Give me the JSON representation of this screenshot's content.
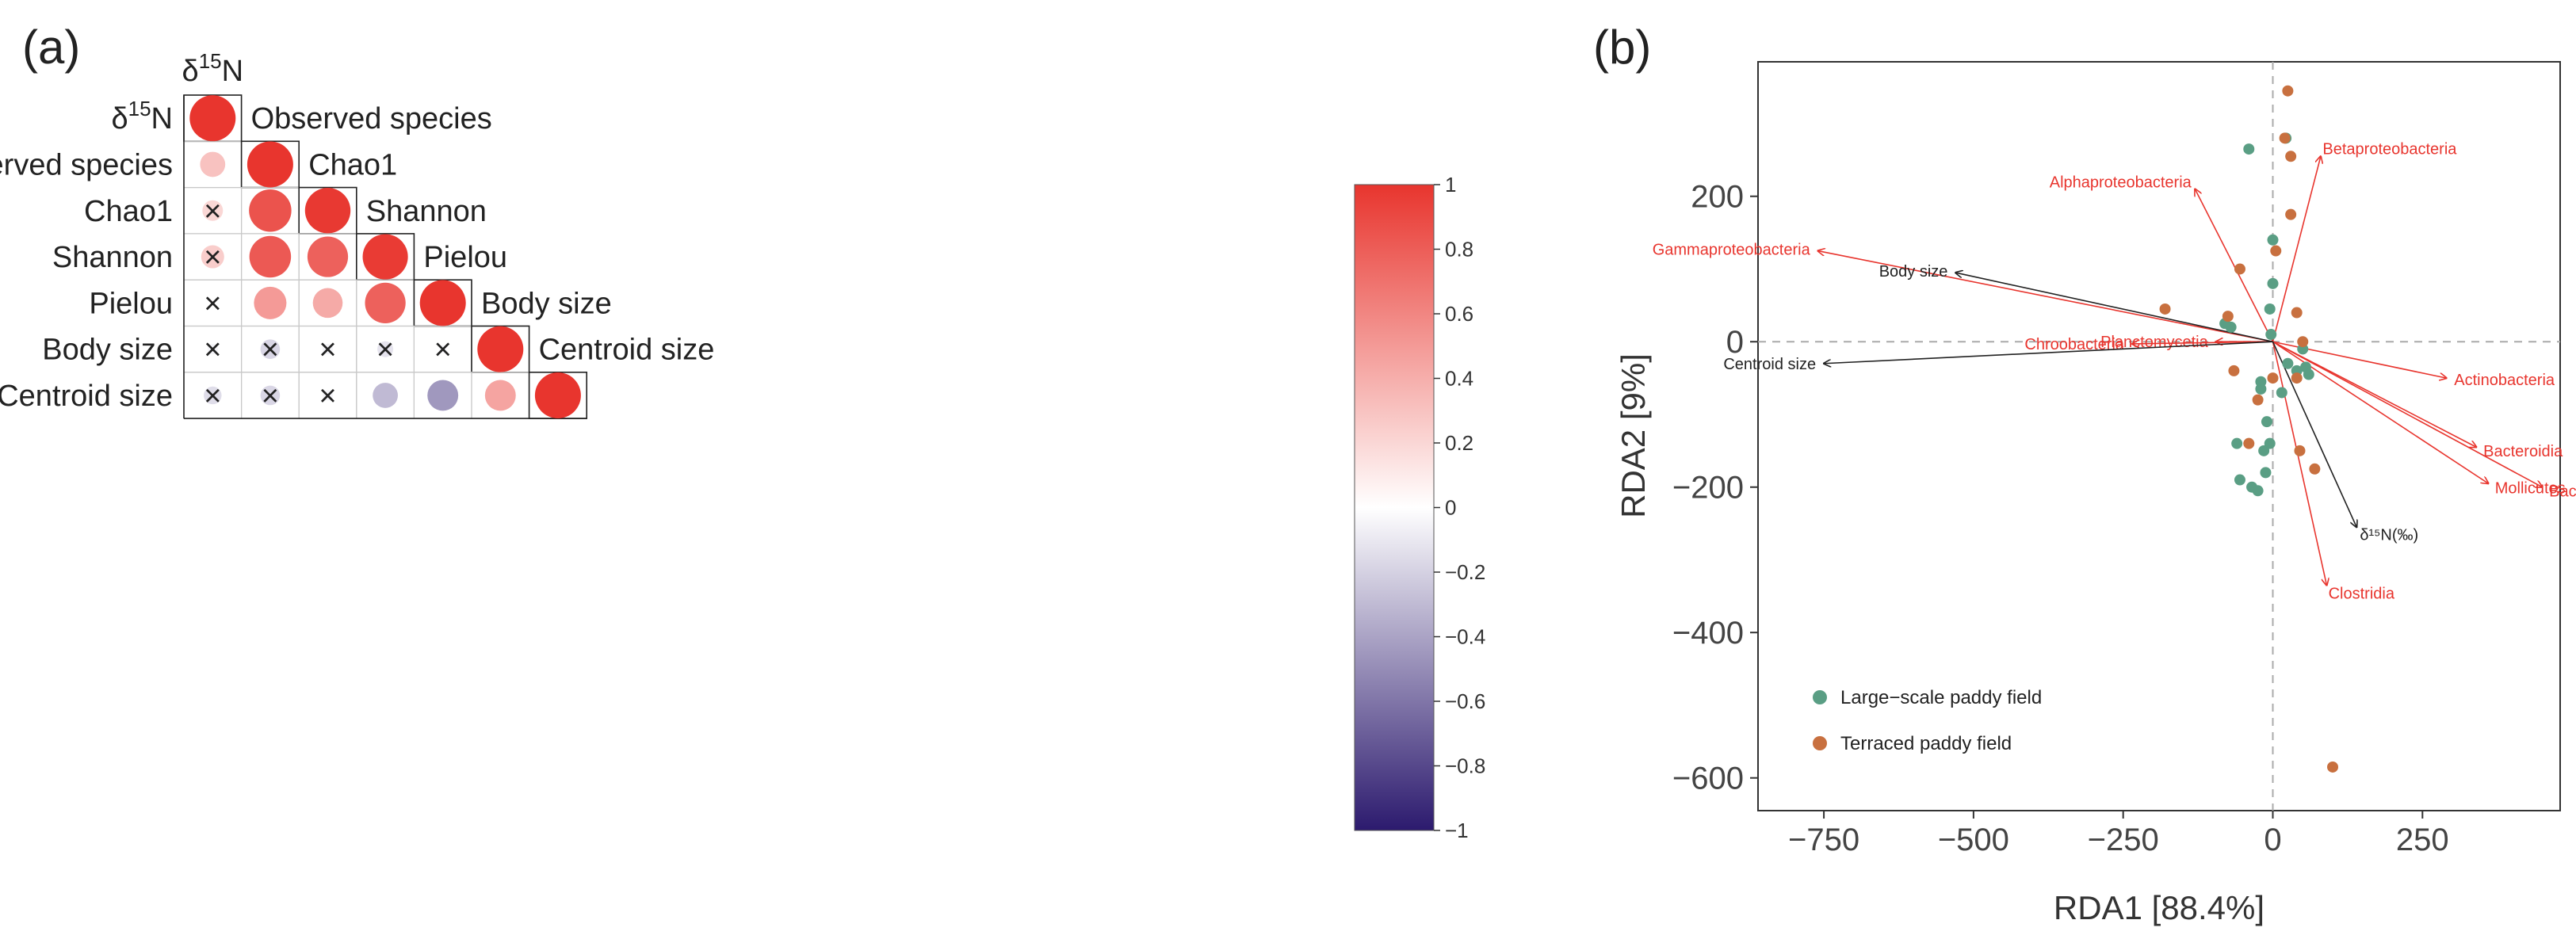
{
  "panel_labels": [
    "(a)",
    "(b)"
  ],
  "chart_data": [
    {
      "type": "heatmap",
      "title": "(a)",
      "subtype": "correlation-circle-lower-triangle",
      "variables": [
        {
          "label": "δ15N",
          "base": "δ",
          "sup": "15",
          "tail": "N"
        },
        {
          "label": "Observed species"
        },
        {
          "label": "Chao1"
        },
        {
          "label": "Shannon"
        },
        {
          "label": "Pielou"
        },
        {
          "label": "Body size"
        },
        {
          "label": "Centroid size"
        }
      ],
      "correlations": [
        [
          1.0
        ],
        [
          0.3,
          1.0
        ],
        [
          0.2,
          0.85,
          0.98
        ],
        [
          0.25,
          0.82,
          0.78,
          0.97
        ],
        [
          0.02,
          0.5,
          0.42,
          0.78,
          1.0
        ],
        [
          -0.05,
          -0.18,
          -0.05,
          -0.12,
          -0.03,
          1.0
        ],
        [
          -0.15,
          -0.18,
          -0.05,
          -0.3,
          -0.45,
          0.45,
          1.0
        ]
      ],
      "nonsignificant": [
        [
          false
        ],
        [
          false,
          false
        ],
        [
          true,
          false,
          false
        ],
        [
          true,
          false,
          false,
          false
        ],
        [
          true,
          false,
          false,
          false,
          false
        ],
        [
          true,
          true,
          true,
          true,
          true,
          false
        ],
        [
          true,
          true,
          true,
          false,
          false,
          false,
          false
        ]
      ],
      "colorbar": {
        "min": -1,
        "max": 1,
        "ticks": [
          "1",
          "0.8",
          "0.6",
          "0.4",
          "0.2",
          "0",
          "−0.2",
          "−0.4",
          "−0.6",
          "−0.8",
          "−1"
        ],
        "tick_values": [
          1,
          0.8,
          0.6,
          0.4,
          0.2,
          0,
          -0.2,
          -0.4,
          -0.6,
          -0.8,
          -1
        ],
        "colors": {
          "high": "#e8352e",
          "mid": "#ffffff",
          "low": "#2c1a6e"
        }
      },
      "nonsig_marker": "×"
    },
    {
      "type": "scatter",
      "title": "(b)",
      "subtype": "rda-biplot",
      "xlabel": "RDA1 [88.4%]",
      "ylabel": "RDA2 [9%]",
      "xlim": [
        -860,
        480
      ],
      "ylim": [
        -645,
        385
      ],
      "x_ticks": [
        -750,
        -500,
        -250,
        0,
        250
      ],
      "x_tick_labels": [
        "−750",
        "−500",
        "−250",
        "0",
        "250"
      ],
      "y_ticks": [
        200,
        0,
        -200,
        -400,
        -600
      ],
      "y_tick_labels": [
        "200",
        "0",
        "−200",
        "−400",
        "−600"
      ],
      "grid": false,
      "reference_lines": [
        0
      ],
      "legend_position": "bottom-left",
      "series": [
        {
          "name": "Large−scale paddy field",
          "color": "#5a9e84",
          "points": [
            [
              -40,
              265
            ],
            [
              22,
              280
            ],
            [
              0,
              140
            ],
            [
              0,
              80
            ],
            [
              -5,
              45
            ],
            [
              -70,
              20
            ],
            [
              -80,
              25
            ],
            [
              -3,
              10
            ],
            [
              25,
              -30
            ],
            [
              40,
              -40
            ],
            [
              55,
              -35
            ],
            [
              60,
              -45
            ],
            [
              15,
              -70
            ],
            [
              -20,
              -55
            ],
            [
              -10,
              -110
            ],
            [
              -5,
              -140
            ],
            [
              -15,
              -150
            ],
            [
              -60,
              -140
            ],
            [
              -55,
              -190
            ],
            [
              -35,
              -200
            ],
            [
              -25,
              -205
            ],
            [
              -12,
              -180
            ],
            [
              50,
              -10
            ],
            [
              -20,
              -65
            ]
          ]
        },
        {
          "name": "Terraced paddy field",
          "color": "#c8703f",
          "points": [
            [
              25,
              345
            ],
            [
              20,
              280
            ],
            [
              30,
              255
            ],
            [
              30,
              175
            ],
            [
              5,
              125
            ],
            [
              -55,
              100
            ],
            [
              -180,
              45
            ],
            [
              -75,
              35
            ],
            [
              40,
              40
            ],
            [
              50,
              0
            ],
            [
              40,
              -50
            ],
            [
              0,
              -50
            ],
            [
              -25,
              -80
            ],
            [
              45,
              -150
            ],
            [
              -40,
              -140
            ],
            [
              70,
              -175
            ],
            [
              100,
              -585
            ],
            [
              -65,
              -40
            ]
          ]
        }
      ],
      "species_vectors": [
        {
          "label": "Alphaproteobacteria",
          "x": -130,
          "y": 210
        },
        {
          "label": "Betaproteobacteria",
          "x": 80,
          "y": 255
        },
        {
          "label": "Gammaproteobacteria",
          "x": -760,
          "y": 125
        },
        {
          "label": "Planctomycetia",
          "x": -95,
          "y": 0
        },
        {
          "label": "Chroobacteria",
          "x": -235,
          "y": -3
        },
        {
          "label": "Actinobacteria",
          "x": 290,
          "y": -50
        },
        {
          "label": "Bacilli",
          "x": 450,
          "y": -200
        },
        {
          "label": "Bacteroidia",
          "x": 340,
          "y": -145
        },
        {
          "label": "Mollicutes",
          "x": 360,
          "y": -195
        },
        {
          "label": "Clostridia",
          "x": 90,
          "y": -335
        }
      ],
      "env_vectors": [
        {
          "label": "Body size",
          "x": -530,
          "y": 95
        },
        {
          "label": "Centroid size",
          "x": -750,
          "y": -30
        },
        {
          "label": "δ¹⁵N(‰)",
          "x": 140,
          "y": -255
        }
      ],
      "vector_colors": {
        "species": "#e8352e",
        "env": "#222222"
      }
    }
  ]
}
